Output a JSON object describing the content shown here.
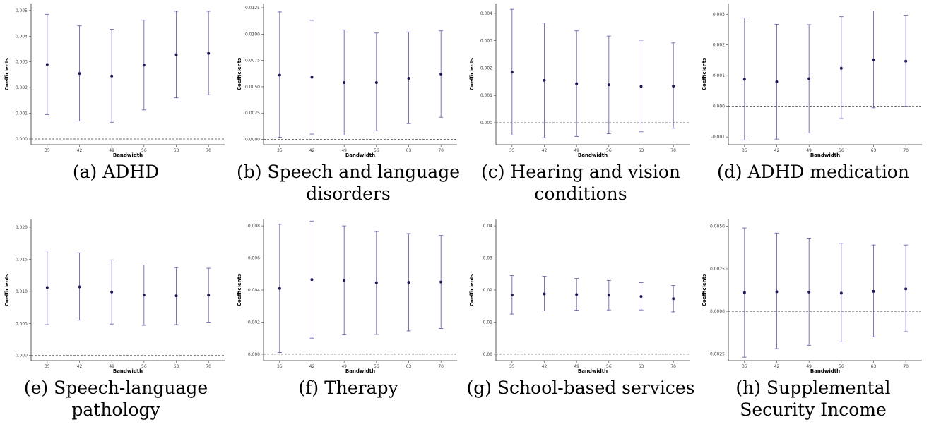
{
  "chart_data": [
    {
      "type": "errorbar",
      "caption": "(a) ADHD",
      "x_label": "Bandwidth",
      "y_label": "Coefficients",
      "categories": [
        "35",
        "42",
        "49",
        "56",
        "63",
        "70"
      ],
      "values": [
        0.0029,
        0.00255,
        0.00245,
        0.00287,
        0.00328,
        0.00333
      ],
      "lower": [
        0.00095,
        0.0007,
        0.00065,
        0.00113,
        0.0016,
        0.00172
      ],
      "upper": [
        0.00485,
        0.0044,
        0.00427,
        0.00462,
        0.00497,
        0.00497
      ],
      "ylim": [
        -0.00022,
        0.00527
      ],
      "yticks": [
        {
          "value": 0,
          "label": "0.000"
        },
        0.001,
        0.002,
        0.003,
        0.004,
        0.005
      ],
      "reference_line": 0,
      "color": "#5a55a6",
      "point_color": "#1e1a5a"
    },
    {
      "type": "errorbar",
      "caption": "(b) Speech and language disorders",
      "x_label": "Bandwidth",
      "y_label": "Coefficients",
      "categories": [
        "35",
        "42",
        "49",
        "56",
        "63",
        "70"
      ],
      "values": [
        0.0061,
        0.0059,
        0.0054,
        0.0054,
        0.0058,
        0.0062
      ],
      "lower": [
        0.0002,
        0.0005,
        0.0004,
        0.0008,
        0.0015,
        0.0021
      ],
      "upper": [
        0.0121,
        0.0113,
        0.0104,
        0.0101,
        0.0102,
        0.0103
      ],
      "ylim": [
        -0.0005,
        0.0129
      ],
      "yticks": [
        {
          "value": 0,
          "label": "0.0000"
        },
        0.0025,
        {
          "value": 0.005,
          "label": "0.0050"
        },
        0.0075,
        {
          "value": 0.01,
          "label": "0.0100"
        },
        0.0125
      ],
      "reference_line": 0,
      "color": "#5a55a6",
      "point_color": "#1e1a5a"
    },
    {
      "type": "errorbar",
      "caption": "(c) Hearing and vision conditions",
      "x_label": "Bandwidth",
      "y_label": "Coefficients",
      "categories": [
        "35",
        "42",
        "49",
        "56",
        "63",
        "70"
      ],
      "values": [
        0.00185,
        0.00155,
        0.00143,
        0.00139,
        0.00133,
        0.00134
      ],
      "lower": [
        -0.00045,
        -0.00055,
        -0.0005,
        -0.0004,
        -0.00033,
        -0.0002
      ],
      "upper": [
        0.00415,
        0.00365,
        0.00336,
        0.00317,
        0.00302,
        0.00292
      ],
      "ylim": [
        -0.0008,
        0.00436
      ],
      "yticks": [
        {
          "value": 0,
          "label": "0.000"
        },
        0.001,
        0.002,
        0.003,
        0.004
      ],
      "reference_line": 0,
      "color": "#5a55a6",
      "point_color": "#1e1a5a"
    },
    {
      "type": "errorbar",
      "caption": "(d) ADHD medication",
      "x_label": "Bandwidth",
      "y_label": "Coefficients",
      "categories": [
        "35",
        "42",
        "49",
        "56",
        "63",
        "70"
      ],
      "values": [
        0.00088,
        0.0008,
        0.0009,
        0.00124,
        0.00151,
        0.00147
      ],
      "lower": [
        -0.0011,
        -0.00107,
        -0.00087,
        -0.0004,
        -5e-05,
        0
      ],
      "upper": [
        0.00288,
        0.00267,
        0.00266,
        0.00292,
        0.00311,
        0.00297
      ],
      "ylim": [
        -0.00125,
        0.00335
      ],
      "yticks": [
        -0.001,
        {
          "value": 0,
          "label": "0.000"
        },
        0.001,
        0.002,
        0.003
      ],
      "reference_line": 0,
      "color": "#5a55a6",
      "point_color": "#1e1a5a"
    },
    {
      "type": "errorbar",
      "caption": "(e) Speech-language pathology",
      "x_label": "Bandwidth",
      "y_label": "Coefficients",
      "categories": [
        "35",
        "42",
        "49",
        "56",
        "63",
        "70"
      ],
      "values": [
        0.0106,
        0.0107,
        0.0099,
        0.0094,
        0.0093,
        0.0094
      ],
      "lower": [
        0.0048,
        0.0055,
        0.0049,
        0.0047,
        0.0048,
        0.0052
      ],
      "upper": [
        0.0163,
        0.016,
        0.0149,
        0.0141,
        0.0137,
        0.0136
      ],
      "ylim": [
        -0.0008,
        0.0212
      ],
      "yticks": [
        {
          "value": 0,
          "label": "0.000"
        },
        0.005,
        {
          "value": 0.01,
          "label": "0.010"
        },
        0.015,
        {
          "value": 0.02,
          "label": "0.020"
        }
      ],
      "reference_line": 0,
      "color": "#5a55a6",
      "point_color": "#1e1a5a"
    },
    {
      "type": "errorbar",
      "caption": "(f) Therapy",
      "x_label": "Bandwidth",
      "y_label": "Coefficients",
      "categories": [
        "35",
        "42",
        "49",
        "56",
        "63",
        "70"
      ],
      "values": [
        0.0041,
        0.00465,
        0.0046,
        0.00445,
        0.00448,
        0.0045
      ],
      "lower": [
        0.0001,
        0.001,
        0.0012,
        0.00123,
        0.00145,
        0.0016
      ],
      "upper": [
        0.0081,
        0.0083,
        0.008,
        0.00765,
        0.00752,
        0.0074
      ],
      "ylim": [
        -0.0004,
        0.0084
      ],
      "yticks": [
        {
          "value": 0,
          "label": "0.000"
        },
        0.002,
        0.004,
        0.006,
        0.008
      ],
      "reference_line": 0,
      "color": "#5a55a6",
      "point_color": "#1e1a5a"
    },
    {
      "type": "errorbar",
      "caption": "(g) School-based services",
      "x_label": "Bandwidth",
      "y_label": "Coefficients",
      "categories": [
        "35",
        "42",
        "49",
        "56",
        "63",
        "70"
      ],
      "values": [
        0.0185,
        0.0188,
        0.0186,
        0.0184,
        0.018,
        0.0173
      ],
      "lower": [
        0.0125,
        0.0135,
        0.0137,
        0.0138,
        0.0138,
        0.0132
      ],
      "upper": [
        0.0245,
        0.0243,
        0.0236,
        0.023,
        0.0223,
        0.0214
      ],
      "ylim": [
        -0.002,
        0.042
      ],
      "yticks": [
        {
          "value": 0,
          "label": "0.00"
        },
        0.01,
        0.02,
        0.03,
        0.04
      ],
      "reference_line": 0,
      "color": "#5a55a6",
      "point_color": "#1e1a5a"
    },
    {
      "type": "errorbar",
      "caption": "(h) Supplemental Security Income",
      "x_label": "Bandwidth",
      "y_label": "Coefficients",
      "categories": [
        "35",
        "42",
        "49",
        "56",
        "63",
        "70"
      ],
      "values": [
        0.0011,
        0.00115,
        0.00113,
        0.00107,
        0.00117,
        0.00132
      ],
      "lower": [
        -0.0027,
        -0.0022,
        -0.002,
        -0.0018,
        -0.0015,
        -0.0012
      ],
      "upper": [
        0.0049,
        0.0046,
        0.0043,
        0.004,
        0.0039,
        0.0039
      ],
      "ylim": [
        -0.0029,
        0.0054
      ],
      "yticks": [
        -0.0025,
        {
          "value": 0,
          "label": "0.0000"
        },
        0.0025,
        {
          "value": 0.005,
          "label": "0.0050"
        }
      ],
      "reference_line": 0,
      "color": "#5a55a6",
      "point_color": "#1e1a5a"
    }
  ]
}
